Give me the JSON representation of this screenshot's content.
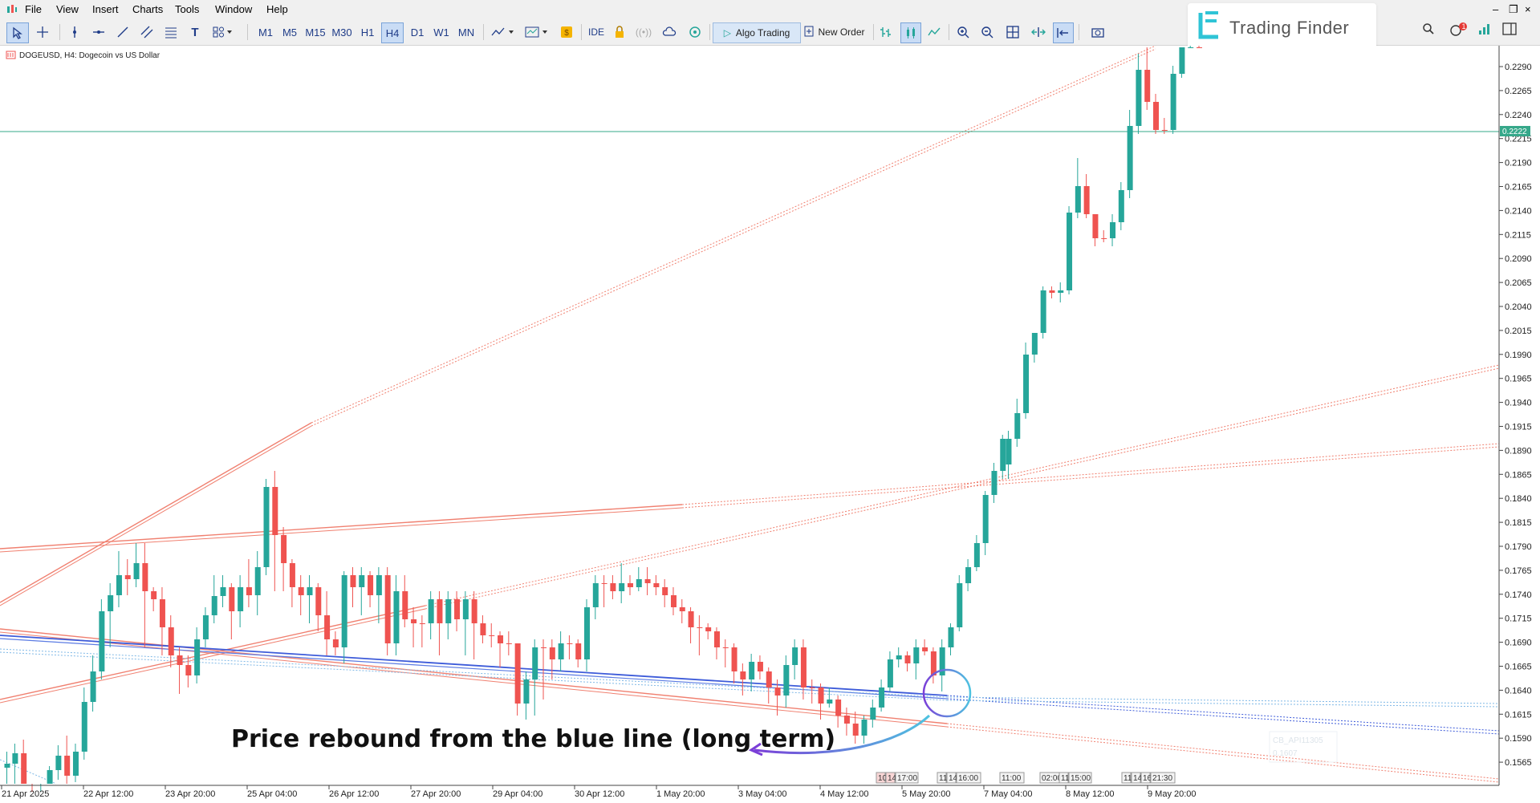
{
  "menu": [
    "File",
    "View",
    "Insert",
    "Charts",
    "Tools",
    "Window",
    "Help"
  ],
  "toolbar": {
    "timeframes": [
      "M1",
      "M5",
      "M15",
      "M30",
      "H1",
      "H4",
      "D1",
      "W1",
      "MN"
    ],
    "active_timeframe": "H4",
    "ide_label": "IDE",
    "algo_trading_label": "Algo Trading",
    "new_order_label": "New Order",
    "notification_count": "1"
  },
  "logo": {
    "text": "Trading Finder"
  },
  "chart": {
    "title": "DOGEUSD, H4:  Dogecoin vs US Dollar",
    "current_price": "0.2222",
    "price_ticks": [
      "0.2290",
      "0.2265",
      "0.2240",
      "0.2215",
      "0.2190",
      "0.2165",
      "0.2140",
      "0.2115",
      "0.2090",
      "0.2065",
      "0.2040",
      "0.2015",
      "0.1990",
      "0.1965",
      "0.1940",
      "0.1915",
      "0.1890",
      "0.1865",
      "0.1840",
      "0.1815",
      "0.1790",
      "0.1765",
      "0.1740",
      "0.1715",
      "0.1690",
      "0.1665",
      "0.1640",
      "0.1615",
      "0.1590",
      "0.1565"
    ],
    "date_ticks": [
      "21 Apr 2025",
      "22 Apr 12:00",
      "23 Apr 20:00",
      "25 Apr 04:00",
      "26 Apr 12:00",
      "27 Apr 20:00",
      "29 Apr 04:00",
      "30 Apr 12:00",
      "1 May 20:00",
      "3 May 04:00",
      "4 May 12:00",
      "5 May 20:00",
      "7 May 04:00",
      "8 May 12:00",
      "9 May 20:00"
    ],
    "time_markers": [
      "10",
      "14",
      "17:00",
      "11",
      "14",
      "16:00",
      "11:00",
      "02:00",
      "11",
      "15:00",
      "11",
      "14",
      "16",
      "21:30"
    ],
    "annotation": "Price rebound from the blue line (long term)",
    "faded_label_1": "CB_API11305",
    "faded_label_2": "0.1607",
    "colors": {
      "bull": "#26a69a",
      "bear": "#ef5350",
      "blue_line": "#3d5bd9",
      "red_line": "#f08070",
      "h_line": "#36a88a"
    }
  }
}
